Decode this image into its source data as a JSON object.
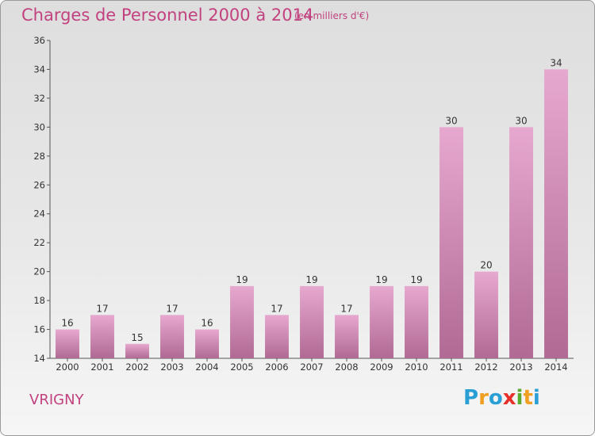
{
  "header": {
    "title": "Charges de Personnel 2000 à 2014",
    "unit": "(en milliers d'€)"
  },
  "footer": {
    "city": "VRIGNY",
    "logo_letters": [
      "P",
      "r",
      "o",
      "x",
      "i",
      "t",
      "i"
    ],
    "logo_colors": [
      "#2a9fd6",
      "#f0a020",
      "#2a9fd6",
      "#e8302a",
      "#5aaa30",
      "#f0a020",
      "#2a9fd6"
    ]
  },
  "colors": {
    "bar_light": "#e7a8cf",
    "bar_dark": "#b06a93",
    "text_accent": "#c2417f"
  },
  "chart_data": {
    "type": "bar",
    "categories": [
      "2000",
      "2001",
      "2002",
      "2003",
      "2004",
      "2005",
      "2006",
      "2007",
      "2008",
      "2009",
      "2010",
      "2011",
      "2012",
      "2013",
      "2014"
    ],
    "values": [
      16,
      17,
      15,
      17,
      16,
      19,
      17,
      19,
      17,
      19,
      19,
      30,
      20,
      30,
      34
    ],
    "ylim": [
      14,
      36
    ],
    "yticks": [
      14,
      16,
      18,
      20,
      22,
      24,
      26,
      28,
      30,
      32,
      34,
      36
    ],
    "grid": false,
    "title": "Charges de Personnel 2000 à 2014"
  }
}
